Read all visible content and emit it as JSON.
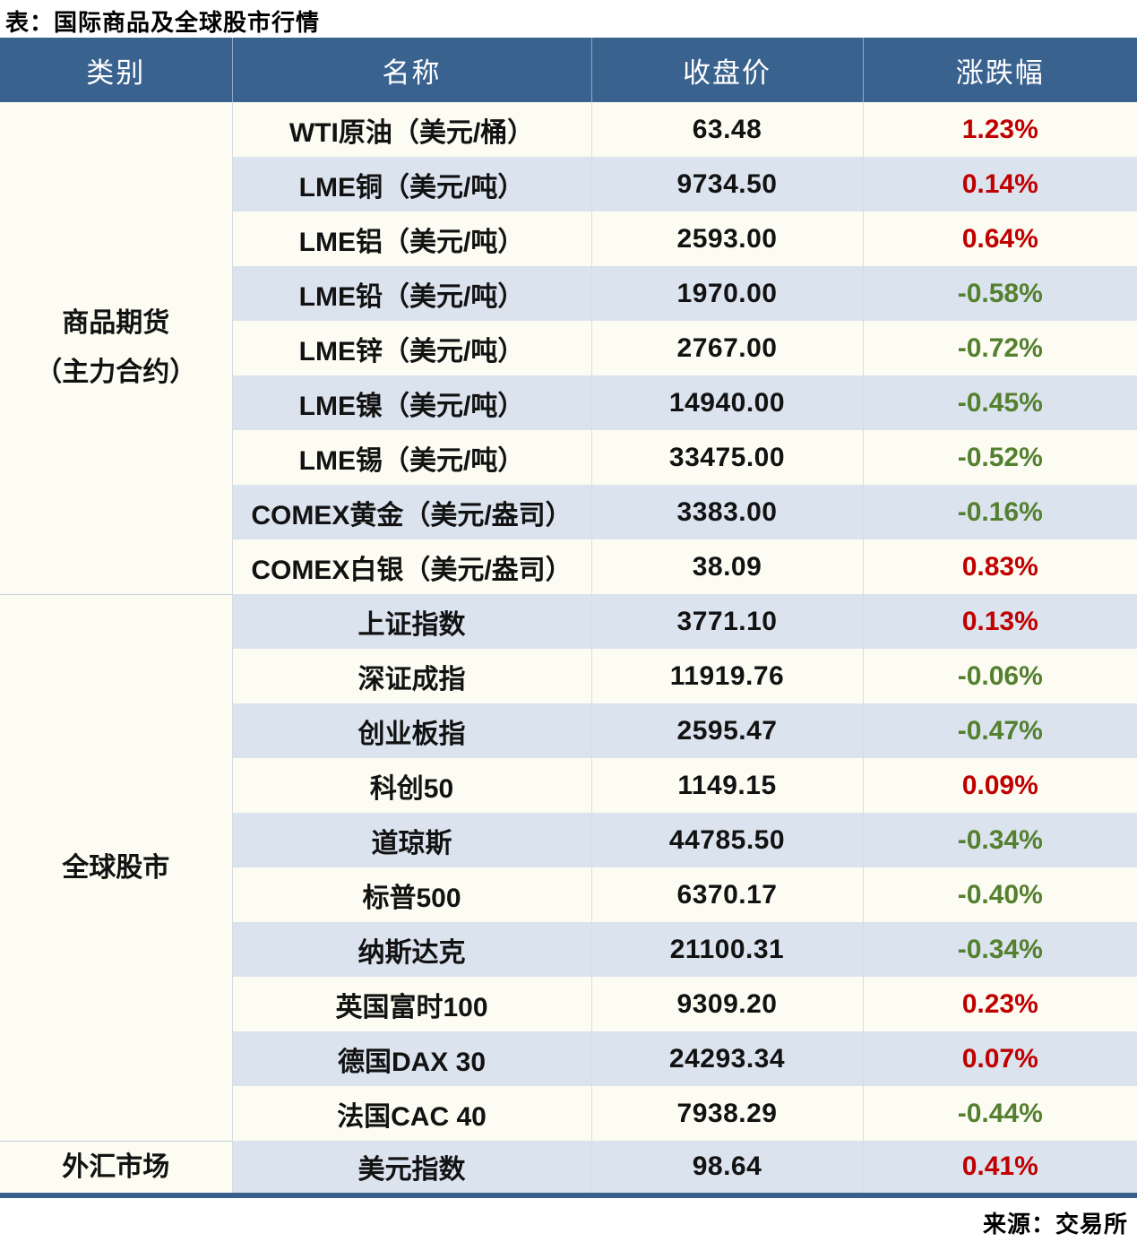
{
  "title": "表：国际商品及全球股市行情",
  "source": "来源：交易所",
  "colors": {
    "header_bg": "#3A628F",
    "stripe_row_bg": "#DBE3EE",
    "plain_row_bg": "#FDFCF3",
    "up_red": "#C00000",
    "down_green": "#54802F",
    "bottom_bar": "#39608C"
  },
  "table": {
    "headers": [
      "类别",
      "名称",
      "收盘价",
      "涨跌幅"
    ],
    "groups": [
      {
        "category_lines": [
          "商品期货",
          "（主力合约）"
        ],
        "rows": [
          {
            "name": "WTI原油（美元/桶）",
            "close": "63.48",
            "change": "1.23%",
            "direction": "up"
          },
          {
            "name": "LME铜（美元/吨）",
            "close": "9734.50",
            "change": "0.14%",
            "direction": "up"
          },
          {
            "name": "LME铝（美元/吨）",
            "close": "2593.00",
            "change": "0.64%",
            "direction": "up"
          },
          {
            "name": "LME铅（美元/吨）",
            "close": "1970.00",
            "change": "-0.58%",
            "direction": "down"
          },
          {
            "name": "LME锌（美元/吨）",
            "close": "2767.00",
            "change": "-0.72%",
            "direction": "down"
          },
          {
            "name": "LME镍（美元/吨）",
            "close": "14940.00",
            "change": "-0.45%",
            "direction": "down"
          },
          {
            "name": "LME锡（美元/吨）",
            "close": "33475.00",
            "change": "-0.52%",
            "direction": "down"
          },
          {
            "name": "COMEX黄金（美元/盎司）",
            "close": "3383.00",
            "change": "-0.16%",
            "direction": "down"
          },
          {
            "name": "COMEX白银（美元/盎司）",
            "close": "38.09",
            "change": "0.83%",
            "direction": "up"
          }
        ]
      },
      {
        "category_lines": [
          "全球股市"
        ],
        "rows": [
          {
            "name": "上证指数",
            "close": "3771.10",
            "change": "0.13%",
            "direction": "up"
          },
          {
            "name": "深证成指",
            "close": "11919.76",
            "change": "-0.06%",
            "direction": "down"
          },
          {
            "name": "创业板指",
            "close": "2595.47",
            "change": "-0.47%",
            "direction": "down"
          },
          {
            "name": "科创50",
            "close": "1149.15",
            "change": "0.09%",
            "direction": "up"
          },
          {
            "name": "道琼斯",
            "close": "44785.50",
            "change": "-0.34%",
            "direction": "down"
          },
          {
            "name": "标普500",
            "close": "6370.17",
            "change": "-0.40%",
            "direction": "down"
          },
          {
            "name": "纳斯达克",
            "close": "21100.31",
            "change": "-0.34%",
            "direction": "down"
          },
          {
            "name": "英国富时100",
            "close": "9309.20",
            "change": "0.23%",
            "direction": "up"
          },
          {
            "name": "德国DAX 30",
            "close": "24293.34",
            "change": "0.07%",
            "direction": "up"
          },
          {
            "name": "法国CAC 40",
            "close": "7938.29",
            "change": "-0.44%",
            "direction": "down"
          }
        ]
      },
      {
        "category_lines": [
          "外汇市场"
        ],
        "rows": [
          {
            "name": "美元指数",
            "close": "98.64",
            "change": "0.41%",
            "direction": "up"
          }
        ]
      }
    ]
  }
}
